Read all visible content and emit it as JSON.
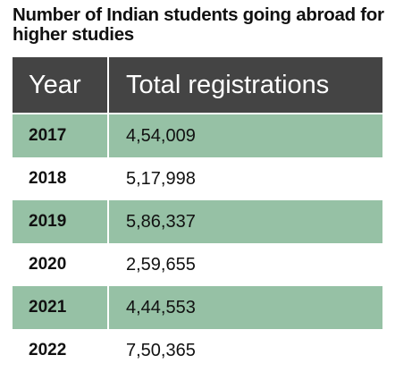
{
  "chart_data": {
    "type": "table",
    "title": "Number of Indian students going abroad for higher studies",
    "columns": [
      "Year",
      "Total registrations"
    ],
    "rows": [
      {
        "year": "2017",
        "total": "4,54,009",
        "value": 454009
      },
      {
        "year": "2018",
        "total": "5,17,998",
        "value": 517998
      },
      {
        "year": "2019",
        "total": "5,86,337",
        "value": 586337
      },
      {
        "year": "2020",
        "total": "2,59,655",
        "value": 259655
      },
      {
        "year": "2021",
        "total": "4,44,553",
        "value": 444553
      },
      {
        "year": "2022",
        "total": "7,50,365",
        "value": 750365
      }
    ]
  },
  "colors": {
    "header_bg": "#444444",
    "shaded_row_bg": "#96c1a5",
    "plain_row_bg": "#ffffff",
    "text": "#111111"
  }
}
